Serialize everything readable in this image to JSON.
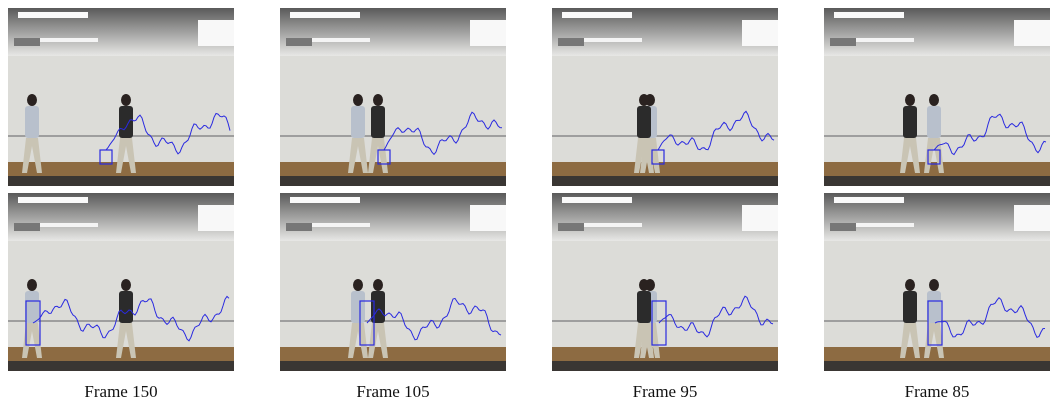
{
  "captions": [
    "Frame 150",
    "Frame 105",
    "Frame 95",
    "Frame 85"
  ]
}
